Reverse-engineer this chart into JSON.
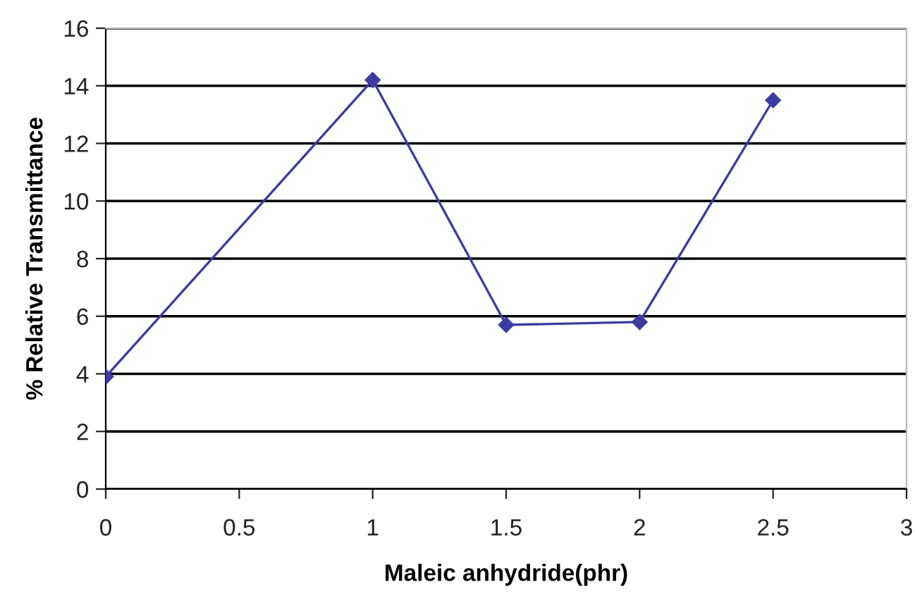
{
  "chart_data": {
    "type": "line",
    "xlabel": "Maleic anhydride(phr)",
    "ylabel": "% Relative Transmittance",
    "x": [
      0,
      1,
      1.5,
      2,
      2.5
    ],
    "series": [
      {
        "color": "#3c3ca0",
        "values": [
          3.9,
          14.2,
          5.7,
          5.8,
          13.5
        ]
      }
    ],
    "xlim": [
      0,
      3
    ],
    "xticks": [
      0,
      0.5,
      1,
      1.5,
      2,
      2.5,
      3
    ],
    "ylim": [
      0,
      16
    ],
    "yticks": [
      0,
      2,
      4,
      6,
      8,
      10,
      12,
      14,
      16
    ],
    "grid": "y",
    "marker": "diamond",
    "line_style": "solid",
    "legend": false
  }
}
